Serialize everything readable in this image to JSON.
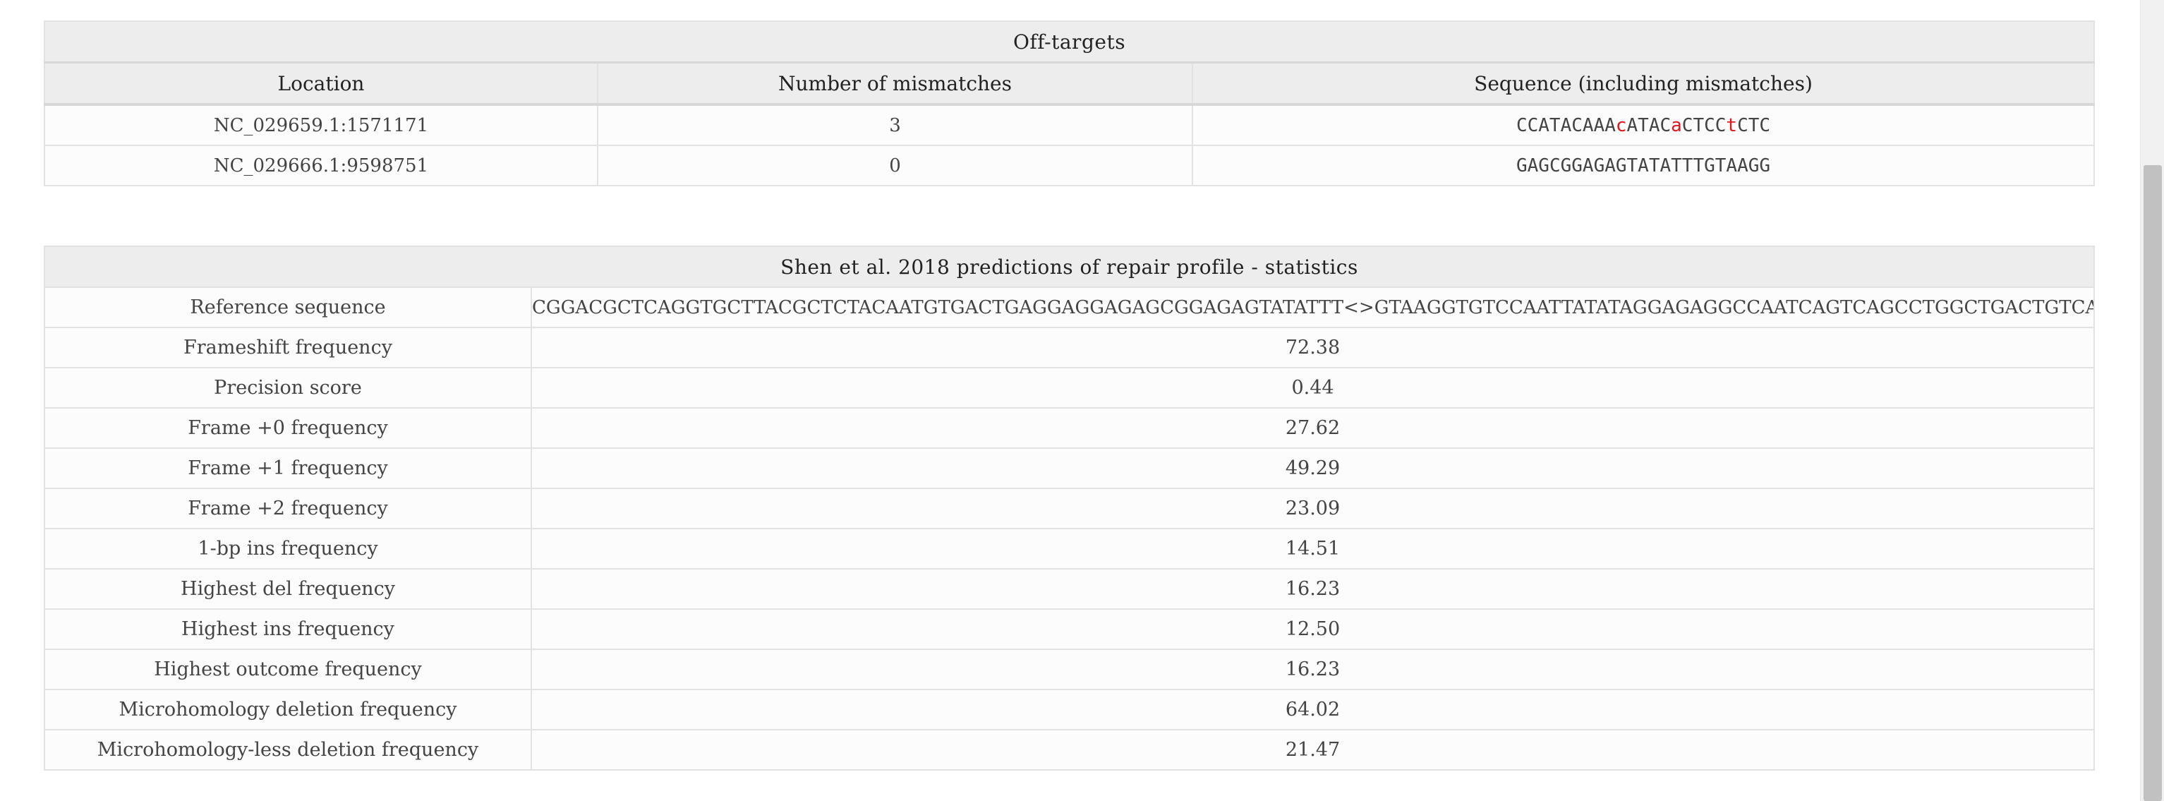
{
  "offtargets": {
    "caption": "Off-targets",
    "headers": [
      "Location",
      "Number of mismatches",
      "Sequence (including mismatches)"
    ],
    "rows": [
      {
        "location": "NC_029659.1:1571171",
        "mismatches": "3",
        "sequence_parts": [
          {
            "text": "CCATACAAA",
            "mismatch": false
          },
          {
            "text": "c",
            "mismatch": true
          },
          {
            "text": "ATAC",
            "mismatch": false
          },
          {
            "text": "a",
            "mismatch": true
          },
          {
            "text": "CTCC",
            "mismatch": false
          },
          {
            "text": "t",
            "mismatch": true
          },
          {
            "text": "CTC",
            "mismatch": false
          }
        ]
      },
      {
        "location": "NC_029666.1:9598751",
        "mismatches": "0",
        "sequence_parts": [
          {
            "text": "GAGCGGAGAGTATATTTGTAAGG",
            "mismatch": false
          }
        ]
      }
    ]
  },
  "stats": {
    "caption": "Shen et al. 2018 predictions of repair profile - statistics",
    "rows": [
      {
        "label": "Reference sequence",
        "value": "CGGACGCTCAGGTGCTTACGCTCTACAATGTGACTGAGGAGGAGAGCGGAGAGTATATTT<>GTAAGGTGTCCAATTATATAGGAGAGGCCAATCAGTCAGCCTGGCTGACTGTCATCAAAT"
      },
      {
        "label": "Frameshift frequency",
        "value": "72.38"
      },
      {
        "label": "Precision score",
        "value": "0.44"
      },
      {
        "label": "Frame +0 frequency",
        "value": "27.62"
      },
      {
        "label": "Frame +1 frequency",
        "value": "49.29"
      },
      {
        "label": "Frame +2 frequency",
        "value": "23.09"
      },
      {
        "label": "1-bp ins frequency",
        "value": "14.51"
      },
      {
        "label": "Highest del frequency",
        "value": "16.23"
      },
      {
        "label": "Highest ins frequency",
        "value": "12.50"
      },
      {
        "label": "Highest outcome frequency",
        "value": "16.23"
      },
      {
        "label": "Microhomology deletion frequency",
        "value": "64.02"
      },
      {
        "label": "Microhomology-less deletion frequency",
        "value": "21.47"
      }
    ]
  },
  "colors": {
    "mismatch": "#e4161b",
    "header_bg": "#ededed",
    "border": "#e2e2e2"
  }
}
